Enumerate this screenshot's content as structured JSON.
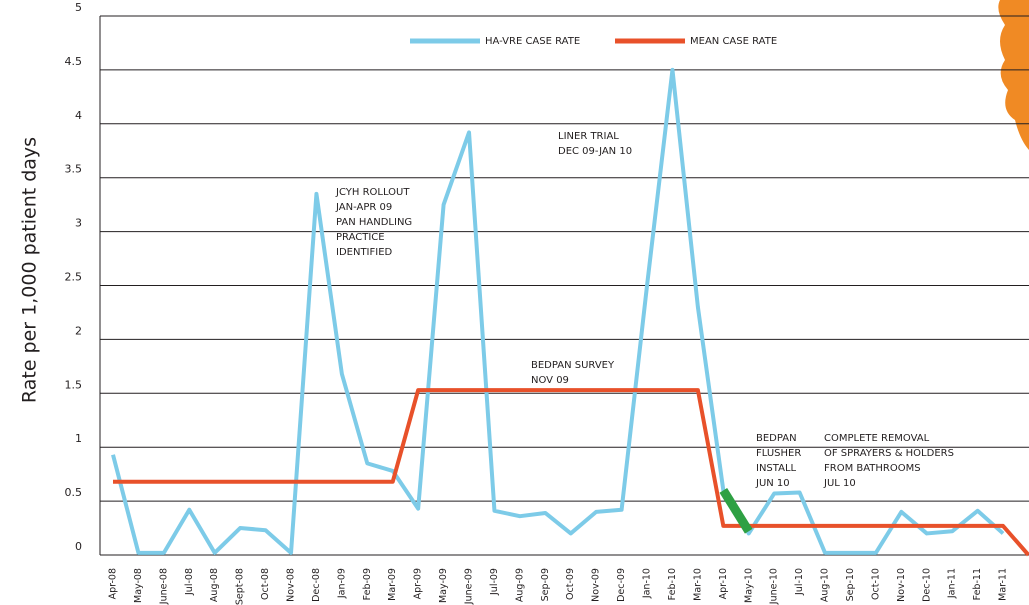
{
  "chart_data": {
    "type": "line",
    "y_label": "Rate per 1,000 patient days",
    "categories": [
      "Apr-08",
      "May-08",
      "June-08",
      "Jul-08",
      "Aug-08",
      "Sept-08",
      "Oct-08",
      "Nov-08",
      "Dec-08",
      "Jan-09",
      "Feb-09",
      "Mar-09",
      "Apr-09",
      "May-09",
      "June-09",
      "Jul-09",
      "Aug-09",
      "Sep-09",
      "Oct-09",
      "Nov-09",
      "Dec-09",
      "Jan-10",
      "Feb-10",
      "Mar-10",
      "Apr-10",
      "May-10",
      "June-10",
      "Jul-10",
      "Aug-10",
      "Sep-10",
      "Oct-10",
      "Nov-10",
      "Dec-10",
      "Jan-11",
      "Feb-11",
      "Mar-11",
      null
    ],
    "series": [
      {
        "name": "HA-VRE CASE RATE",
        "color": "#7dcbe8",
        "width": 4,
        "values": [
          0.93,
          0.02,
          0.02,
          0.42,
          0.02,
          0.25,
          0.23,
          0.02,
          3.35,
          1.68,
          0.85,
          0.78,
          0.43,
          3.25,
          3.92,
          0.41,
          0.36,
          0.39,
          0.2,
          0.4,
          0.42,
          2.5,
          4.5,
          2.3,
          0.6,
          0.2,
          0.57,
          0.58,
          0.02,
          0.02,
          0.02,
          0.4,
          0.2,
          0.22,
          0.41,
          0.2,
          null
        ]
      },
      {
        "name": "MEAN CASE RATE",
        "color": "#e8512a",
        "width": 4,
        "values": [
          0.68,
          0.68,
          0.68,
          0.68,
          0.68,
          0.68,
          0.68,
          0.68,
          0.68,
          0.68,
          0.68,
          0.68,
          1.53,
          1.53,
          1.53,
          1.53,
          1.53,
          1.53,
          1.53,
          1.53,
          1.53,
          1.53,
          1.53,
          1.53,
          0.27,
          0.27,
          0.27,
          0.27,
          0.27,
          0.27,
          0.27,
          0.27,
          0.27,
          0.27,
          0.27,
          0.27,
          0
        ]
      },
      {
        "color": "#2ea043",
        "width": 9,
        "values": [
          null,
          null,
          null,
          null,
          null,
          null,
          null,
          null,
          null,
          null,
          null,
          null,
          null,
          null,
          null,
          null,
          null,
          null,
          null,
          null,
          null,
          null,
          4.5,
          null,
          0.6,
          0.22,
          null,
          null,
          null,
          null,
          null,
          null,
          null,
          null,
          null,
          null,
          null
        ]
      }
    ],
    "ylim": [
      0,
      5
    ],
    "yticks": [
      0,
      0.5,
      1,
      1.5,
      2,
      2.5,
      3,
      3.5,
      4,
      4.5,
      5
    ],
    "grid": true,
    "annotations": [
      [
        "JCYH ROLLOUT",
        "JAN-APR 09",
        "PAN HANDLING",
        "PRACTICE",
        "IDENTIFIED"
      ],
      [
        "LINER TRIAL",
        "DEC 09-JAN 10"
      ],
      [
        "BEDPAN SURVEY",
        "NOV 09"
      ],
      [
        "BEDPAN",
        "FLUSHER",
        "INSTALL",
        "JUN 10"
      ],
      [
        "COMPLETE REMOVAL",
        "OF SPRAYERS & HOLDERS",
        "FROM BATHROOMS",
        "JUL 10"
      ]
    ]
  }
}
